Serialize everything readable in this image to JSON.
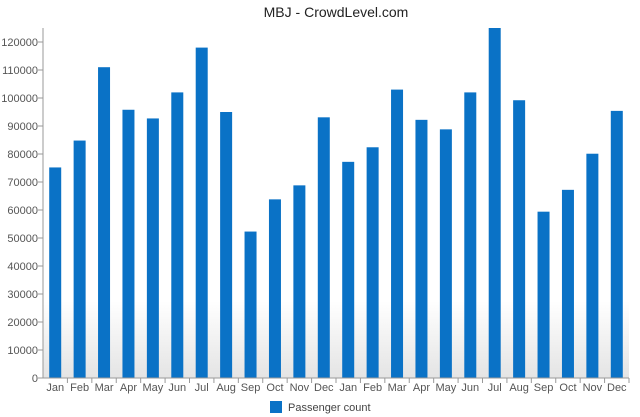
{
  "chart_data": {
    "type": "bar",
    "title": "MBJ - CrowdLevel.com",
    "xlabel": "",
    "ylabel": "",
    "categories": [
      "Jan",
      "Feb",
      "Mar",
      "Apr",
      "May",
      "Jun",
      "Jul",
      "Aug",
      "Sep",
      "Oct",
      "Nov",
      "Dec",
      "Jan",
      "Feb",
      "Mar",
      "Apr",
      "May",
      "Jun",
      "Jul",
      "Aug",
      "Sep",
      "Oct",
      "Nov",
      "Dec"
    ],
    "series": [
      {
        "name": "Passenger count",
        "values": [
          75200,
          84800,
          111000,
          95800,
          92700,
          102000,
          118000,
          95000,
          52300,
          63800,
          68800,
          93100,
          77200,
          82400,
          103000,
          92200,
          88800,
          102000,
          125000,
          99200,
          59400,
          67200,
          80100,
          95400
        ]
      }
    ],
    "ylim": [
      0,
      125000
    ],
    "yticks": [
      "0",
      "10000",
      "20000",
      "30000",
      "40000",
      "50000",
      "60000",
      "70000",
      "80000",
      "90000",
      "100000",
      "110000",
      "120000"
    ],
    "bar_color": "#0a72c6",
    "grid": false,
    "legend_position": "bottom"
  }
}
